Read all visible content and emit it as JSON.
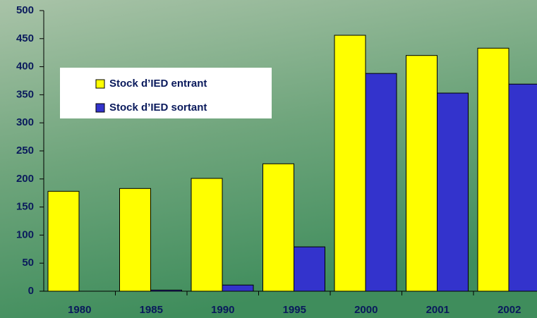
{
  "chart_data": {
    "type": "bar",
    "categories": [
      "1980",
      "1985",
      "1990",
      "1995",
      "2000",
      "2001",
      "2002"
    ],
    "series": [
      {
        "name": "Stock d’IED entrant",
        "color": "#ffff00",
        "values": [
          178,
          183,
          201,
          227,
          456,
          420,
          433
        ]
      },
      {
        "name": "Stock d’IED sortant",
        "color": "#3333cc",
        "values": [
          0,
          2,
          11,
          79,
          388,
          353,
          369
        ]
      }
    ],
    "ylim": [
      0,
      500
    ],
    "yticks": [
      0,
      50,
      100,
      150,
      200,
      250,
      300,
      350,
      400,
      450,
      500
    ]
  }
}
